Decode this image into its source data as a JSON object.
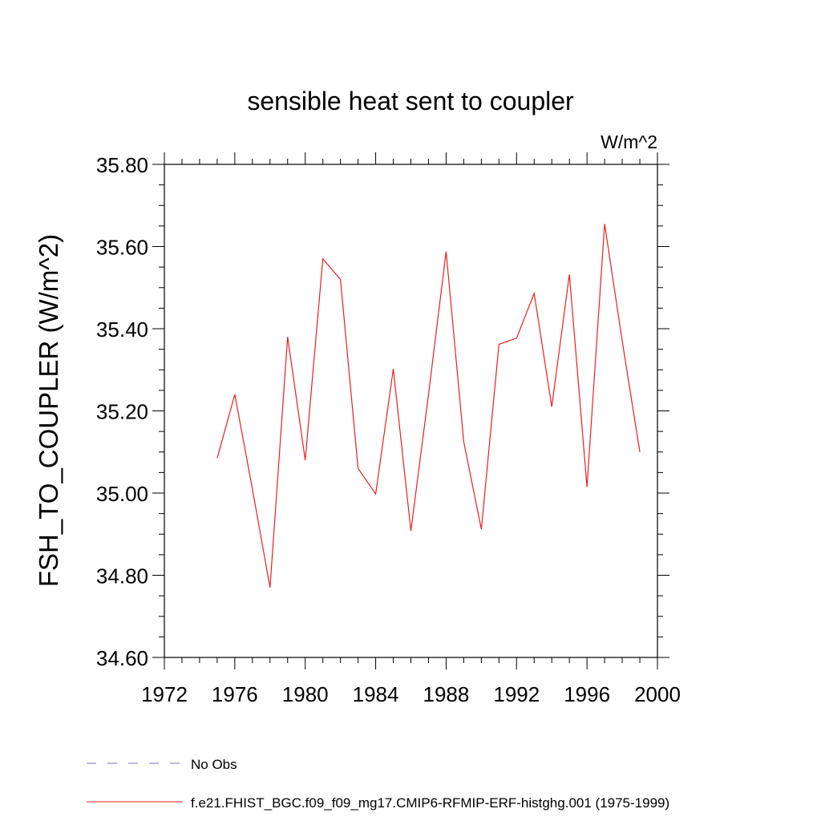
{
  "chart_data": {
    "type": "line",
    "title": "sensible heat sent to coupler",
    "units_label": "W/m^2",
    "ylabel": "FSH_TO_COUPLER  (W/m^2)",
    "xlabel": "",
    "xlim": [
      1972,
      2000
    ],
    "ylim": [
      34.6,
      35.8
    ],
    "x_ticks": [
      1972,
      1976,
      1980,
      1984,
      1988,
      1992,
      1996,
      2000
    ],
    "x_tick_labels": [
      "1972",
      "1976",
      "1980",
      "1984",
      "1988",
      "1992",
      "1996",
      "2000"
    ],
    "y_ticks": [
      34.6,
      34.8,
      35.0,
      35.2,
      35.4,
      35.6,
      35.8
    ],
    "y_tick_labels": [
      "34.60",
      "34.80",
      "35.00",
      "35.20",
      "35.40",
      "35.60",
      "35.80"
    ],
    "grid": false,
    "legend_position": "bottom",
    "legend": [
      {
        "label": "No Obs",
        "color": "#7b6fb0",
        "style": "dashed"
      },
      {
        "label": "f.e21.FHIST_BGC.f09_f09_mg17.CMIP6-RFMIP-ERF-histghg.001 (1975-1999)",
        "color": "#e8201e",
        "style": "solid"
      }
    ],
    "series": [
      {
        "name": "f.e21.FHIST_BGC.f09_f09_mg17.CMIP6-RFMIP-ERF-histghg.001 (1975-1999)",
        "color": "#e8201e",
        "x": [
          1975,
          1976,
          1977,
          1978,
          1979,
          1980,
          1981,
          1982,
          1983,
          1984,
          1985,
          1986,
          1987,
          1988,
          1989,
          1990,
          1991,
          1992,
          1993,
          1994,
          1995,
          1996,
          1997,
          1998,
          1999
        ],
        "y": [
          35.085,
          35.24,
          35.01,
          34.77,
          35.38,
          35.08,
          35.57,
          35.52,
          35.06,
          34.998,
          35.302,
          34.908,
          35.24,
          35.588,
          35.125,
          34.912,
          35.362,
          35.377,
          35.486,
          35.21,
          35.532,
          35.015,
          35.655,
          35.37,
          35.1
        ]
      }
    ]
  }
}
